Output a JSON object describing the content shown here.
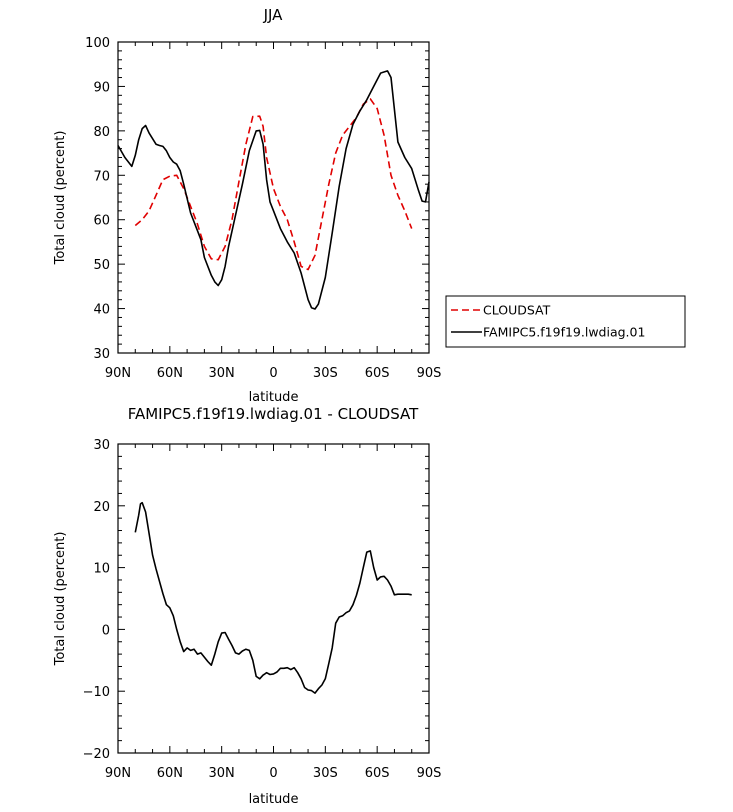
{
  "chart_data": [
    {
      "type": "line",
      "title": "JJA",
      "xlabel": "latitude",
      "ylabel": "Total cloud (percent)",
      "xlim": [
        90,
        -90
      ],
      "ylim": [
        30,
        100
      ],
      "xticks": [
        90,
        60,
        30,
        0,
        -30,
        -60,
        -90
      ],
      "xtick_labels": [
        "90N",
        "60N",
        "30N",
        "0",
        "30S",
        "60S",
        "90S"
      ],
      "yticks": [
        30,
        40,
        50,
        60,
        70,
        80,
        90,
        100
      ],
      "ytick_labels": [
        "30",
        "40",
        "50",
        "60",
        "70",
        "80",
        "90",
        "100"
      ],
      "legend_position": "right",
      "series": [
        {
          "name": "CLOUDSAT",
          "color": "#e00000",
          "dash": "dashed",
          "x": [
            80,
            76,
            72,
            68,
            64,
            60,
            56,
            52,
            48,
            44,
            40,
            36,
            32,
            28,
            24,
            20,
            16,
            12,
            8,
            6,
            4,
            0,
            -4,
            -8,
            -12,
            -16,
            -20,
            -24,
            -28,
            -32,
            -36,
            -40,
            -44,
            -48,
            -52,
            -56,
            -60,
            -64,
            -68,
            -72,
            -76,
            -80
          ],
          "y": [
            58.7,
            60,
            62,
            65.5,
            69,
            69.8,
            70,
            67,
            63,
            59,
            54,
            51.2,
            51,
            54,
            60,
            68.5,
            77,
            83.2,
            83.3,
            81,
            74,
            67,
            63,
            60,
            55,
            49.5,
            48.8,
            52,
            60,
            68,
            75,
            79,
            81,
            83,
            86,
            87.2,
            85,
            79,
            70,
            65.5,
            62,
            58
          ]
        },
        {
          "name": "FAMIPC5.f19f19.lwdiag.01",
          "color": "#000000",
          "dash": "solid",
          "x": [
            90,
            86,
            82,
            80,
            78,
            76,
            74,
            72,
            68,
            66,
            64,
            62,
            60,
            58,
            56,
            54,
            52,
            48,
            44,
            42,
            40,
            36,
            34,
            32,
            30,
            28,
            26,
            22,
            18,
            14,
            10,
            8,
            6,
            4,
            2,
            0,
            -4,
            -8,
            -12,
            -16,
            -20,
            -22,
            -24,
            -26,
            -30,
            -34,
            -38,
            -42,
            -46,
            -50,
            -54,
            -58,
            -62,
            -66,
            -68,
            -72,
            -76,
            -80,
            -84,
            -86,
            -88,
            -90
          ],
          "y": [
            76.7,
            74,
            72,
            74.5,
            78,
            80.5,
            81.2,
            79.5,
            77,
            76.7,
            76.5,
            75.5,
            74,
            73,
            72.5,
            71,
            68,
            61.5,
            57.5,
            55.5,
            51.5,
            47.5,
            46,
            45.2,
            46.5,
            49.5,
            54,
            61,
            68,
            75.5,
            80,
            80.1,
            77,
            69,
            64,
            62,
            58,
            55,
            52.5,
            48,
            42,
            40.2,
            39.9,
            41,
            47,
            57,
            67.5,
            76,
            81.5,
            84.5,
            87,
            90,
            93,
            93.5,
            92,
            77.5,
            74,
            71.5,
            66.5,
            64.2,
            64,
            68.5
          ]
        }
      ]
    },
    {
      "type": "line",
      "title": "FAMIPC5.f19f19.lwdiag.01 - CLOUDSAT",
      "xlabel": "latitude",
      "ylabel": "Total cloud (percent)",
      "xlim": [
        90,
        -90
      ],
      "ylim": [
        -20,
        30
      ],
      "xticks": [
        90,
        60,
        30,
        0,
        -30,
        -60,
        -90
      ],
      "xtick_labels": [
        "90N",
        "60N",
        "30N",
        "0",
        "30S",
        "60S",
        "90S"
      ],
      "yticks": [
        -20,
        -10,
        0,
        10,
        20,
        30
      ],
      "ytick_labels": [
        "−20",
        "−10",
        "0",
        "10",
        "20",
        "30"
      ],
      "series": [
        {
          "color": "#000000",
          "dash": "solid",
          "x": [
            80,
            78,
            77,
            76,
            74,
            72,
            70,
            68,
            64,
            62,
            60,
            58,
            56,
            54,
            52,
            50,
            48,
            46,
            44,
            42,
            40,
            38,
            36,
            34,
            32,
            30,
            28,
            26,
            24,
            22,
            20,
            18,
            16,
            14,
            12,
            10,
            8,
            6,
            5,
            4,
            2,
            0,
            -2,
            -4,
            -6,
            -8,
            -10,
            -12,
            -14,
            -16,
            -18,
            -20,
            -22,
            -24,
            -26,
            -28,
            -30,
            -32,
            -34,
            -36,
            -38,
            -40,
            -42,
            -44,
            -46,
            -48,
            -50,
            -52,
            -54,
            -56,
            -58,
            -60,
            -62,
            -64,
            -66,
            -68,
            -70,
            -72,
            -74,
            -76,
            -78,
            -80
          ],
          "y": [
            15.7,
            18.5,
            20.3,
            20.5,
            19,
            15.5,
            12,
            9.8,
            5.8,
            4,
            3.5,
            2.2,
            0,
            -2,
            -3.6,
            -3,
            -3.4,
            -3.2,
            -4,
            -3.8,
            -4.5,
            -5.2,
            -5.8,
            -4,
            -2,
            -0.6,
            -0.5,
            -1.6,
            -2.6,
            -3.8,
            -4,
            -3.5,
            -3.2,
            -3.4,
            -5,
            -7.6,
            -8,
            -7.4,
            -7.2,
            -7,
            -7.3,
            -7.2,
            -6.9,
            -6.3,
            -6.3,
            -6.2,
            -6.5,
            -6.2,
            -7,
            -8,
            -9.4,
            -9.8,
            -9.9,
            -10.3,
            -9.6,
            -9,
            -8,
            -5.5,
            -3,
            1,
            2,
            2.2,
            2.7,
            3,
            4,
            5.5,
            7.5,
            10,
            12.5,
            12.7,
            10,
            8,
            8.5,
            8.6,
            8,
            7,
            5.6,
            5.7,
            5.7,
            5.7,
            5.7,
            5.6
          ]
        }
      ]
    }
  ]
}
